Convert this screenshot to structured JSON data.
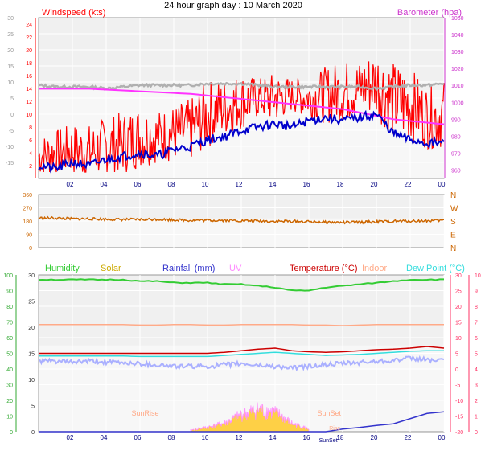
{
  "title": "24 hour graph day : 10 March 2020",
  "colors": {
    "wind": "#ff0000",
    "gust_line": "#0000cc",
    "avg_gray": "#b0b0b0",
    "baro": "#ff33ff",
    "dir": "#cc6600",
    "humidity": "#33cc33",
    "solar": "#ffcc33",
    "solar_light": "#ffd98a",
    "rain": "#3333cc",
    "uv": "#ff88ff",
    "temp": "#cc0000",
    "indoor": "#ffaa88",
    "dew": "#33dddd",
    "feels": "#aab0ff",
    "left_axis1": "#ff0000",
    "right_axis1": "#cc33cc",
    "left_axis3": "#33aa33",
    "right_axis3": "#ff3366",
    "plot_bg": "#f0f0f0"
  },
  "chart_data": [
    {
      "type": "line",
      "id": "wind_baro",
      "left_label": "Windspeed (kts)",
      "right_label": "Barometer (hpa)",
      "x_ticks": [
        "02",
        "04",
        "06",
        "08",
        "10",
        "12",
        "14",
        "16",
        "18",
        "20",
        "22",
        "00"
      ],
      "left_axis_red": {
        "ticks": [
          2,
          4,
          6,
          8,
          10,
          12,
          14,
          16,
          18,
          20,
          22,
          24
        ],
        "ylim": [
          0,
          25
        ]
      },
      "left_axis_gray": {
        "ticks": [
          -15,
          -10,
          -5,
          0,
          5,
          10,
          15,
          20,
          25,
          30
        ],
        "ylim": [
          -20,
          30
        ]
      },
      "right_axis": {
        "ticks": [
          960,
          970,
          980,
          990,
          1000,
          1010,
          1020,
          1030,
          1040,
          1050
        ],
        "ylim": [
          955,
          1050
        ]
      },
      "x_hours": [
        0,
        1,
        2,
        3,
        4,
        5,
        6,
        7,
        8,
        9,
        10,
        11,
        12,
        13,
        14,
        15,
        16,
        17,
        18,
        19,
        20,
        21,
        22,
        23,
        24
      ],
      "series": [
        {
          "key": "windspeed",
          "values": [
            3.5,
            4,
            4.5,
            4,
            5,
            5.5,
            6.5,
            6.5,
            7,
            7.5,
            10,
            11,
            12,
            12.5,
            12.5,
            13,
            12.5,
            13,
            13.5,
            14,
            15,
            12,
            11.5,
            9.5,
            10
          ]
        },
        {
          "key": "windspeed_max",
          "values": [
            7,
            8,
            9,
            9,
            10,
            11,
            12,
            11,
            12,
            13,
            16,
            16,
            17,
            16,
            17,
            16,
            16,
            18,
            19,
            19,
            21,
            19,
            18,
            15,
            16
          ]
        },
        {
          "key": "avg",
          "values": [
            2,
            1.5,
            2.5,
            2,
            3,
            3.5,
            4,
            3.5,
            4.5,
            5,
            6,
            6.5,
            7.5,
            8,
            8.5,
            8,
            9,
            9.5,
            9,
            9.5,
            10,
            7,
            6,
            5.5,
            5.5
          ]
        },
        {
          "key": "temp_gray",
          "values": [
            9,
            8.5,
            8.5,
            8.5,
            8,
            8.5,
            9,
            9,
            9,
            9,
            9.5,
            9.5,
            9.5,
            9,
            8.5,
            8.5,
            8.5,
            8.5,
            8.5,
            8.5,
            8,
            8.5,
            9,
            9,
            9.5
          ]
        },
        {
          "key": "barometer",
          "values": [
            1008,
            1008,
            1008,
            1008,
            1007.5,
            1007,
            1006.5,
            1006,
            1005.5,
            1005,
            1004,
            1003,
            1002,
            1001,
            1000,
            999,
            998,
            997,
            996,
            994,
            992,
            990,
            989,
            988,
            987
          ]
        }
      ]
    },
    {
      "type": "line",
      "id": "wind_direction",
      "left_ticks": [
        0,
        90,
        180,
        270,
        360
      ],
      "right_ticks": [
        "N",
        "W",
        "S",
        "E",
        "N"
      ],
      "ylim": [
        0,
        360
      ],
      "series": [
        {
          "key": "direction",
          "values": [
            200,
            200,
            195,
            195,
            192,
            190,
            190,
            192,
            188,
            185,
            185,
            185,
            182,
            180,
            178,
            178,
            175,
            172,
            170,
            172,
            175,
            178,
            180,
            182,
            185
          ]
        }
      ]
    },
    {
      "type": "line",
      "id": "multi",
      "legend": [
        "Humidity",
        "Solar",
        "Rainfall (mm)",
        "UV",
        "Temperature (°C)",
        "Indoor",
        "Dew Point (°C)"
      ],
      "left_green": {
        "ticks": [
          0,
          10,
          20,
          30,
          40,
          50,
          60,
          70,
          80,
          90,
          100
        ],
        "ylim": [
          0,
          100
        ]
      },
      "left_gray": {
        "ticks": [
          0,
          5,
          10,
          15,
          20,
          25,
          30
        ],
        "ylim": [
          0,
          30
        ]
      },
      "right_pink": {
        "ticks": [
          -20,
          -15,
          -10,
          -5,
          0,
          5,
          10,
          15,
          20,
          25,
          30
        ],
        "ylim": [
          -20,
          30
        ]
      },
      "right_uv": {
        "ticks": [
          0,
          1,
          2,
          3,
          4,
          5,
          6,
          7,
          8,
          9,
          10
        ],
        "ylim": [
          0,
          10
        ]
      },
      "x_ticks": [
        "02",
        "04",
        "06",
        "08",
        "10",
        "12",
        "14",
        "16",
        "18",
        "20",
        "22",
        "00"
      ],
      "annotations": [
        "SunRise",
        "SunSet",
        "SunSet",
        "Rise"
      ],
      "series": [
        {
          "key": "humidity",
          "values": [
            97,
            97,
            97,
            97,
            97,
            97,
            96,
            96,
            95,
            95,
            95,
            94,
            94,
            93,
            92,
            90,
            90,
            92,
            93,
            94,
            95,
            96,
            97,
            97,
            97
          ]
        },
        {
          "key": "indoor_temp",
          "values": [
            20.5,
            20.5,
            20.5,
            20.5,
            20.5,
            20.5,
            20.4,
            20.4,
            20.5,
            20.5,
            20.4,
            20.4,
            20.5,
            20.5,
            20.5,
            20.5,
            20.4,
            20.4,
            20.3,
            20.4,
            20.5,
            20.5,
            20.5,
            20.5,
            20.5
          ]
        },
        {
          "key": "temperature",
          "values": [
            15,
            15,
            15,
            15,
            15,
            15,
            15,
            15,
            15,
            15,
            15,
            15.2,
            15.5,
            15.8,
            16,
            15.5,
            15.3,
            15.2,
            15.3,
            15.5,
            15.7,
            15.8,
            16,
            16.3,
            16
          ]
        },
        {
          "key": "dew_point",
          "values": [
            14.5,
            14.5,
            14.5,
            14.5,
            14.5,
            14.5,
            14.4,
            14.4,
            14.4,
            14.4,
            14.4,
            14.6,
            14.8,
            15,
            15.2,
            15,
            14.8,
            14.6,
            14.7,
            14.8,
            15,
            15.2,
            15.4,
            15.5,
            15.5
          ]
        },
        {
          "key": "feels_like",
          "values": [
            13.5,
            13.5,
            13.3,
            13.5,
            13.3,
            13.2,
            13,
            12.8,
            12.5,
            12.5,
            12.5,
            12.8,
            13,
            12.7,
            12.5,
            12.2,
            12.5,
            12.8,
            13,
            13.2,
            13.5,
            13.7,
            14,
            13.8,
            13.5
          ]
        },
        {
          "key": "solar",
          "values": [
            0,
            0,
            0,
            0,
            0,
            0,
            0,
            0,
            0,
            0.3,
            0.8,
            1.5,
            3,
            4,
            3.5,
            1.5,
            0.5,
            0,
            0,
            0,
            0,
            0,
            0,
            0,
            0
          ]
        },
        {
          "key": "rainfall",
          "values": [
            0,
            0,
            0,
            0,
            0,
            0,
            0,
            0,
            0,
            0,
            0,
            0,
            0,
            0,
            0,
            0,
            0,
            0,
            0.5,
            0.8,
            1.2,
            1.5,
            2.5,
            3.5,
            3.8
          ]
        }
      ]
    }
  ]
}
